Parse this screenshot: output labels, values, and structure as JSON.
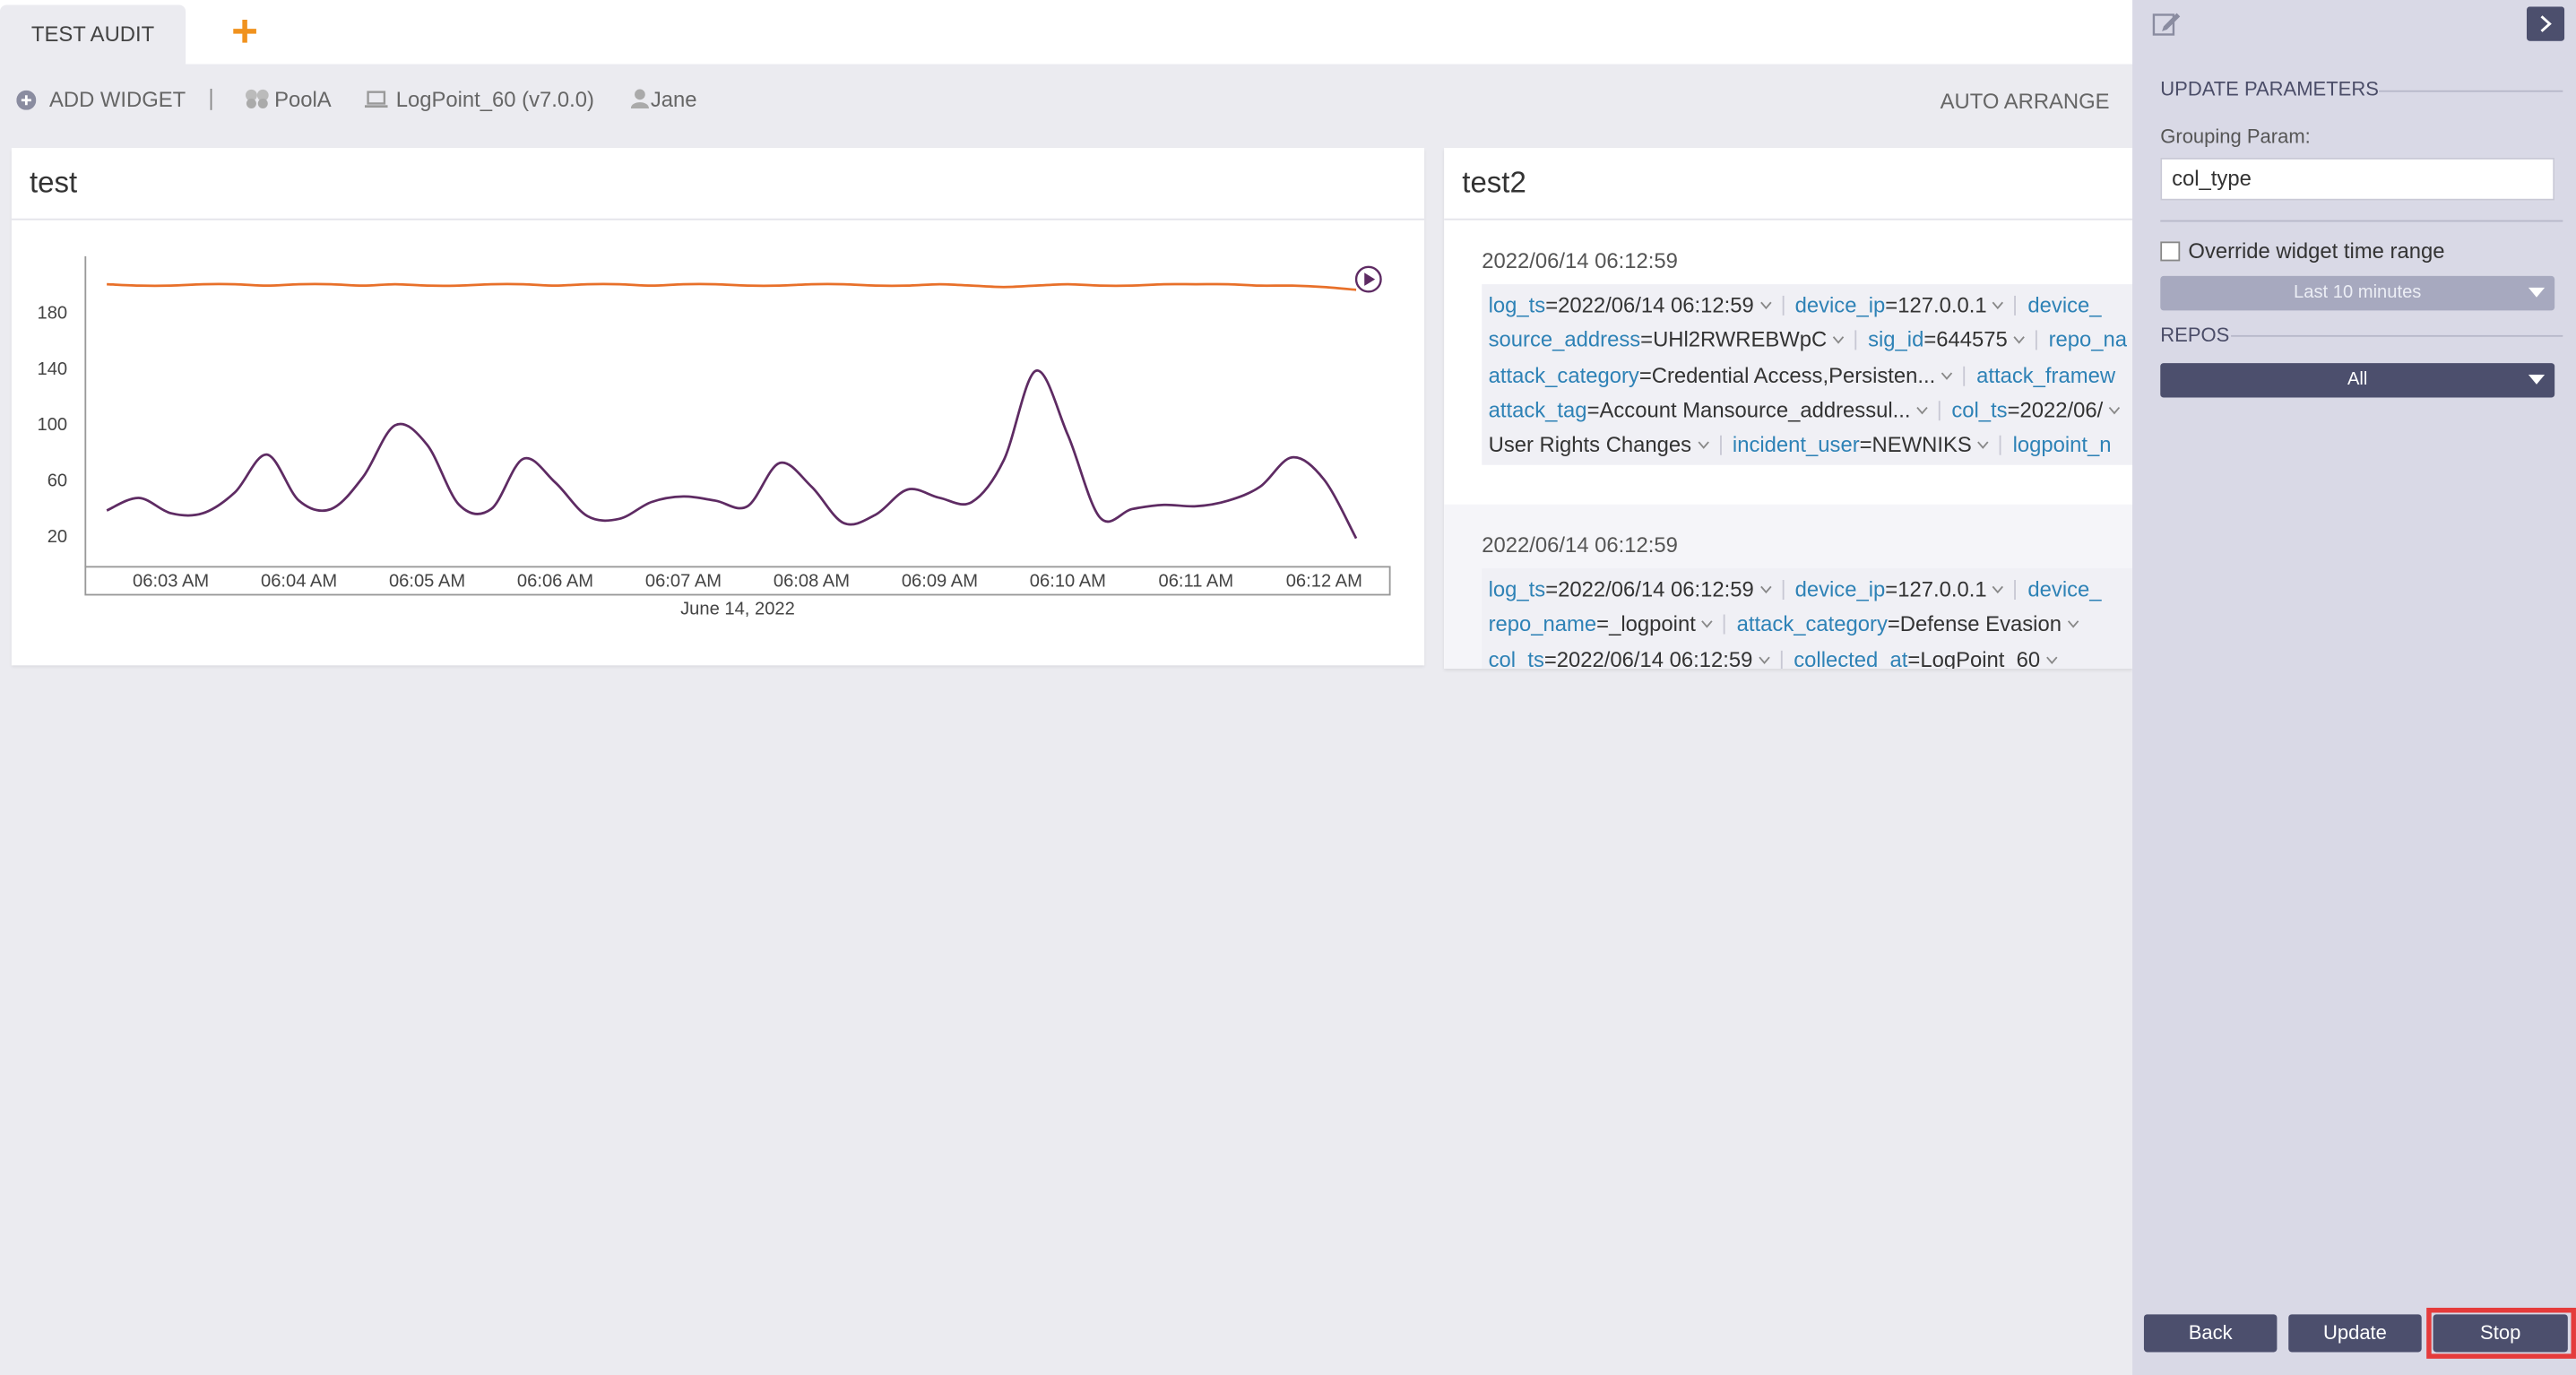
{
  "tabs": [
    {
      "label": "TEST AUDIT"
    }
  ],
  "toolbar": {
    "add_widget": "ADD WIDGET",
    "pool": "PoolA",
    "logpoint": "LogPoint_60 (v7.0.0)",
    "user": "Jane",
    "auto_arrange": "AUTO ARRANGE"
  },
  "widgets": [
    {
      "title": "test"
    },
    {
      "title": "test2",
      "entries": [
        {
          "timestamp": "2022/06/14 06:12:59",
          "lines": [
            [
              {
                "key": "log_ts",
                "value": "=2022/06/14 06:12:59"
              },
              {
                "key": "device_ip",
                "value": "=127.0.0.1"
              },
              {
                "key": "device_"
              }
            ],
            [
              {
                "key": "source_address",
                "value": "=UHl2RWREBWpC"
              },
              {
                "key": "sig_id",
                "value": "=644575"
              },
              {
                "key": "repo_na"
              }
            ],
            [
              {
                "key": "attack_category",
                "value": "=Credential Access,Persisten..."
              },
              {
                "key": "attack_framew"
              }
            ],
            [
              {
                "key": "attack_tag",
                "value": "=Account Mansource_addressul..."
              },
              {
                "key": "col_ts",
                "value": "=2022/06/"
              }
            ],
            [
              {
                "value": "User Rights Changes"
              },
              {
                "key": "incident_user",
                "value": "=NEWNIKS"
              },
              {
                "key": "logpoint_n"
              }
            ]
          ]
        },
        {
          "timestamp": "2022/06/14 06:12:59",
          "lines": [
            [
              {
                "key": "log_ts",
                "value": "=2022/06/14 06:12:59"
              },
              {
                "key": "device_ip",
                "value": "=127.0.0.1"
              },
              {
                "key": "device_"
              }
            ],
            [
              {
                "key": "repo_name",
                "value": "=_logpoint"
              },
              {
                "key": "attack_category",
                "value": "=Defense Evasion"
              }
            ],
            [
              {
                "key": "col_ts",
                "value": "=2022/06/14 06:12:59"
              },
              {
                "key": "collected_at",
                "value": "=LogPoint_60"
              }
            ]
          ]
        }
      ]
    }
  ],
  "chart_data": {
    "type": "line",
    "categories": [
      null,
      null,
      "06:03 AM",
      null,
      null,
      null,
      "06:04 AM",
      null,
      null,
      null,
      "06:05 AM",
      null,
      null,
      null,
      "06:06 AM",
      null,
      null,
      null,
      "06:07 AM",
      null,
      null,
      null,
      "06:08 AM",
      null,
      null,
      null,
      "06:09 AM",
      null,
      null,
      null,
      "06:10 AM",
      null,
      null,
      null,
      "06:11 AM",
      null,
      null,
      null,
      "06:12 AM",
      null
    ],
    "series": [
      {
        "color": "#e8702a",
        "values": [
          200,
          199,
          199,
          200,
          200,
          199,
          200,
          200,
          199,
          200,
          199,
          199,
          200,
          200,
          199,
          200,
          200,
          199,
          200,
          200,
          199,
          199,
          200,
          200,
          199,
          199,
          200,
          199,
          198,
          199,
          200,
          199,
          199,
          200,
          200,
          200,
          199,
          199,
          198,
          196
        ]
      },
      {
        "color": "#5e2b63",
        "values": [
          38,
          47,
          36,
          36,
          51,
          78,
          45,
          39,
          62,
          99,
          85,
          42,
          39,
          75,
          58,
          34,
          32,
          44,
          48,
          45,
          41,
          72,
          55,
          29,
          35,
          53,
          47,
          44,
          74,
          138,
          92,
          33,
          39,
          42,
          41,
          45,
          55,
          76,
          60,
          18
        ]
      }
    ],
    "ylim": [
      0,
      220
    ],
    "yticks": [
      20,
      60,
      100,
      140,
      180
    ],
    "xlabel": "June 14, 2022"
  },
  "panel": {
    "section_title": "UPDATE PARAMETERS",
    "grouping_label": "Grouping Param:",
    "grouping_value": "col_type",
    "override_label": "Override widget time range",
    "time_range": "Last 10 minutes",
    "repos_title": "REPOS",
    "repos_value": "All",
    "buttons": [
      "Back",
      "Update",
      "Stop"
    ]
  }
}
